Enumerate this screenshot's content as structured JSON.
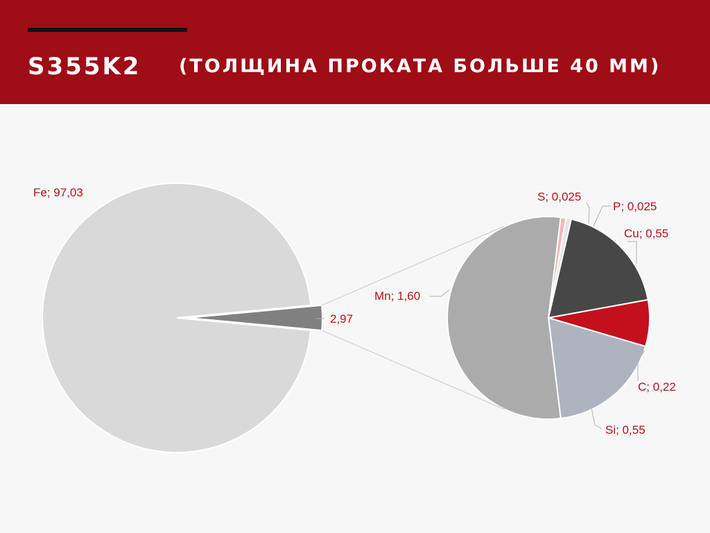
{
  "header": {
    "code": "S355K2",
    "subtitle": "(ТОЛЩИНА ПРОКАТА БОЛЬШЕ 40 ММ)",
    "background": "#9f0d17"
  },
  "chart_data": {
    "type": "pie",
    "subtype": "pie-of-pie",
    "title": "S355K2 (ТОЛЩИНА ПРОКАТА БОЛЬШЕ 40 ММ)",
    "main_pie": {
      "slices": [
        {
          "label": "Fe",
          "value": 97.03,
          "display": "Fe; 97,03",
          "color": "#d9d9d9"
        },
        {
          "label": "",
          "value": 2.97,
          "display": "2,97",
          "color": "#808080"
        }
      ]
    },
    "secondary_pie": {
      "slices": [
        {
          "label": "S",
          "value": 0.025,
          "display": "S; 0,025",
          "color": "#f4b6b9"
        },
        {
          "label": "P",
          "value": 0.025,
          "display": "P; 0,025",
          "color": "#e6e6e6"
        },
        {
          "label": "Cu",
          "value": 0.55,
          "display": "Cu; 0,55",
          "color": "#474747"
        },
        {
          "label": "C",
          "value": 0.22,
          "display": "C; 0,22",
          "color": "#c4101c"
        },
        {
          "label": "Si",
          "value": 0.55,
          "display": "Si; 0,55",
          "color": "#adb4bf"
        },
        {
          "label": "Mn",
          "value": 1.6,
          "display": "Mn; 1,60",
          "color": "#ababab"
        }
      ]
    },
    "label_color": "#b3121c",
    "legend": "none"
  }
}
